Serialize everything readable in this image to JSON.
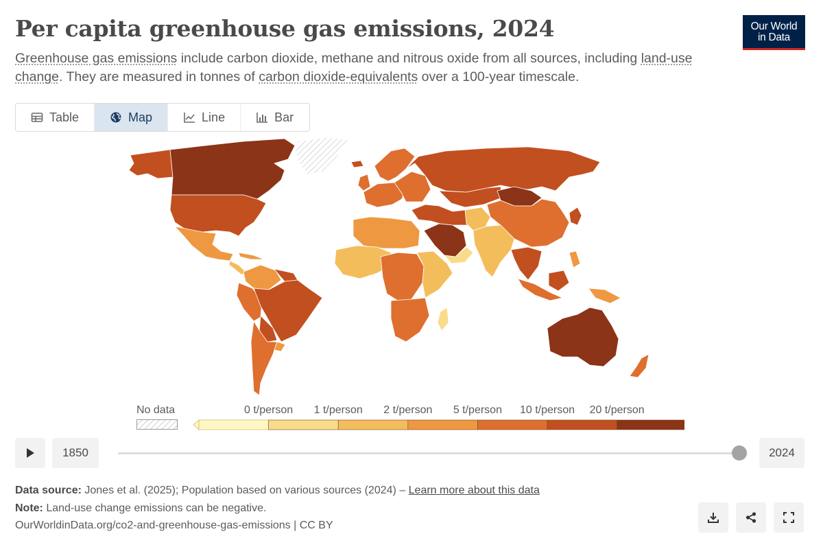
{
  "header": {
    "title": "Per capita greenhouse gas emissions, 2024",
    "subtitle": {
      "link1": "Greenhouse gas emissions",
      "text1": " include carbon dioxide, methane and nitrous oxide from all sources, including ",
      "link2": "land-use change",
      "text2": ". They are measured in tonnes of ",
      "link3": "carbon dioxide-equivalents",
      "text3": " over a 100-year timescale."
    },
    "logo": {
      "line1": "Our World",
      "line2": "in Data"
    }
  },
  "tabs": [
    {
      "label": "Table",
      "icon": "table-icon",
      "active": false
    },
    {
      "label": "Map",
      "icon": "globe-icon",
      "active": true
    },
    {
      "label": "Line",
      "icon": "line-chart-icon",
      "active": false
    },
    {
      "label": "Bar",
      "icon": "bar-chart-icon",
      "active": false
    }
  ],
  "legend": {
    "no_data": "No data",
    "bins": [
      "0 t/person",
      "1 t/person",
      "2 t/person",
      "5 t/person",
      "10 t/person",
      "20 t/person"
    ],
    "colors": [
      "#fef7c4",
      "#f8dc8a",
      "#f4bd5c",
      "#ee9841",
      "#de6f2f",
      "#c24f1f",
      "#8b3417"
    ]
  },
  "timeline": {
    "start": "1850",
    "end": "2024",
    "position": 1.0
  },
  "footer": {
    "source_label": "Data source:",
    "source_text": " Jones et al. (2025); Population based on various sources (2024) – ",
    "source_link": "Learn more about this data",
    "note_label": "Note:",
    "note_text": " Land-use change emissions can be negative.",
    "url": "OurWorldinData.org/co2-and-greenhouse-gas-emissions | CC BY"
  },
  "actions": [
    "download-icon",
    "share-icon",
    "fullscreen-icon"
  ]
}
